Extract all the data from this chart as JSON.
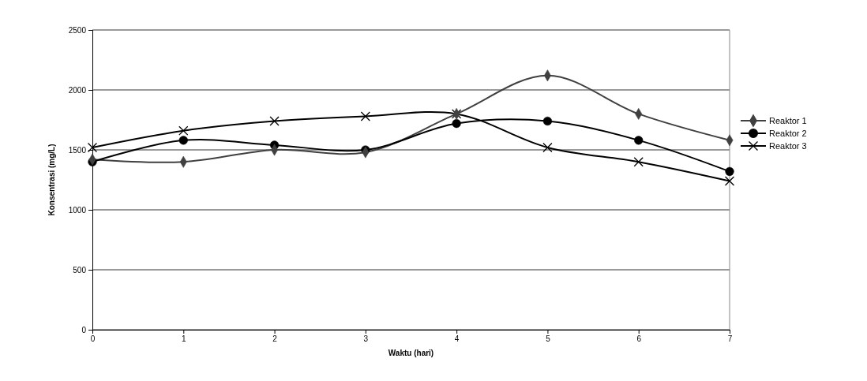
{
  "chart_data": {
    "type": "line",
    "xlabel": "Waktu (hari)",
    "ylabel": "Konsentrasi (mg/L)",
    "x": [
      0,
      1,
      2,
      3,
      4,
      5,
      6,
      7
    ],
    "xlim": [
      0,
      7
    ],
    "xticks": [
      0,
      1,
      2,
      3,
      4,
      5,
      6,
      7
    ],
    "ylim": [
      0,
      2500
    ],
    "yticks": [
      0,
      500,
      1000,
      1500,
      2000,
      2500
    ],
    "grid": "y",
    "legend": "right",
    "line_style": "solid",
    "series": [
      {
        "name": "Reaktor 1",
        "color": "#404040",
        "marker": "diamond",
        "values": [
          1420,
          1400,
          1500,
          1480,
          1800,
          2120,
          1800,
          1580
        ]
      },
      {
        "name": "Reaktor 2",
        "color": "#000000",
        "marker": "circle",
        "values": [
          1400,
          1580,
          1540,
          1500,
          1720,
          1740,
          1580,
          1320
        ]
      },
      {
        "name": "Reaktor 3",
        "color": "#000000",
        "marker": "cross",
        "values": [
          1520,
          1660,
          1740,
          1780,
          1800,
          1520,
          1400,
          1240
        ]
      }
    ]
  }
}
